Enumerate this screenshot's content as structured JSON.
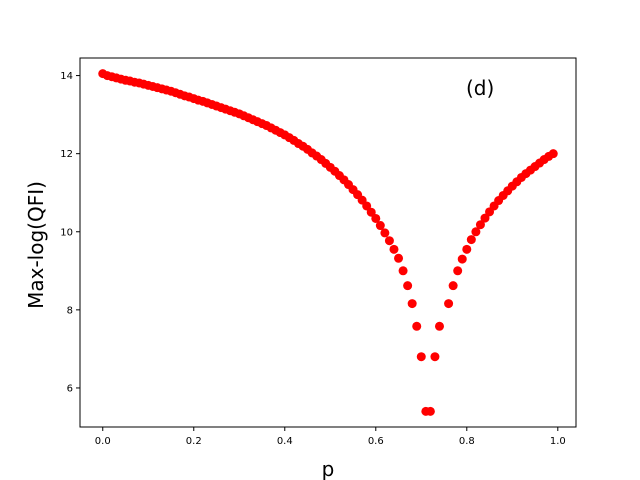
{
  "chart_data": {
    "type": "scatter",
    "title": "",
    "xlabel": "p",
    "ylabel": "Max-log(QFI)",
    "annotation": "(d)",
    "xlim": [
      -0.05,
      1.04
    ],
    "ylim": [
      5.0,
      14.45
    ],
    "xticks": [
      0.0,
      0.2,
      0.4,
      0.6,
      0.8,
      1.0
    ],
    "xtick_labels": [
      "0.0",
      "0.2",
      "0.4",
      "0.6",
      "0.8",
      "1.0"
    ],
    "yticks": [
      6,
      8,
      10,
      12,
      14
    ],
    "ytick_labels": [
      "6",
      "8",
      "10",
      "12",
      "14"
    ],
    "grid": false,
    "marker_color": "#ff0000",
    "series": [
      {
        "x": [
          0.0,
          0.01,
          0.02,
          0.03,
          0.04,
          0.05,
          0.06,
          0.07,
          0.08,
          0.09,
          0.1,
          0.11,
          0.12,
          0.13,
          0.14,
          0.15,
          0.16,
          0.17,
          0.18,
          0.19,
          0.2,
          0.21,
          0.22,
          0.23,
          0.24,
          0.25,
          0.26,
          0.27,
          0.28,
          0.29,
          0.3,
          0.31,
          0.32,
          0.33,
          0.34,
          0.35,
          0.36,
          0.37,
          0.38,
          0.39,
          0.4,
          0.41,
          0.42,
          0.43,
          0.44,
          0.45,
          0.46,
          0.47,
          0.48,
          0.49,
          0.5,
          0.51,
          0.52,
          0.53,
          0.54,
          0.55,
          0.56,
          0.57,
          0.58,
          0.59,
          0.6,
          0.61,
          0.62,
          0.63,
          0.64,
          0.65,
          0.66,
          0.67,
          0.68,
          0.69,
          0.7,
          0.71,
          0.72,
          0.73,
          0.74,
          0.76,
          0.77,
          0.78,
          0.79,
          0.8,
          0.81,
          0.82,
          0.83,
          0.84,
          0.85,
          0.86,
          0.87,
          0.88,
          0.89,
          0.9,
          0.91,
          0.92,
          0.93,
          0.94,
          0.95,
          0.96,
          0.97,
          0.98,
          0.99
        ],
        "y": [
          14.05,
          14.0,
          13.97,
          13.94,
          13.91,
          13.88,
          13.86,
          13.83,
          13.81,
          13.78,
          13.75,
          13.72,
          13.69,
          13.66,
          13.63,
          13.6,
          13.56,
          13.52,
          13.48,
          13.45,
          13.41,
          13.37,
          13.34,
          13.3,
          13.26,
          13.22,
          13.18,
          13.14,
          13.1,
          13.06,
          13.02,
          12.97,
          12.92,
          12.87,
          12.82,
          12.77,
          12.72,
          12.66,
          12.6,
          12.54,
          12.48,
          12.41,
          12.34,
          12.26,
          12.19,
          12.11,
          12.02,
          11.94,
          11.85,
          11.75,
          11.65,
          11.55,
          11.44,
          11.33,
          11.21,
          11.08,
          10.95,
          10.81,
          10.66,
          10.5,
          10.34,
          10.16,
          9.97,
          9.77,
          9.55,
          9.32,
          9.0,
          8.62,
          8.16,
          7.58,
          6.8,
          5.4,
          5.4,
          6.8,
          7.58,
          8.16,
          8.62,
          9.0,
          9.3,
          9.55,
          9.8,
          10.0,
          10.18,
          10.35,
          10.51,
          10.66,
          10.8,
          10.93,
          11.05,
          11.17,
          11.28,
          11.39,
          11.49,
          11.58,
          11.67,
          11.76,
          11.85,
          11.93,
          12.0
        ]
      }
    ]
  }
}
